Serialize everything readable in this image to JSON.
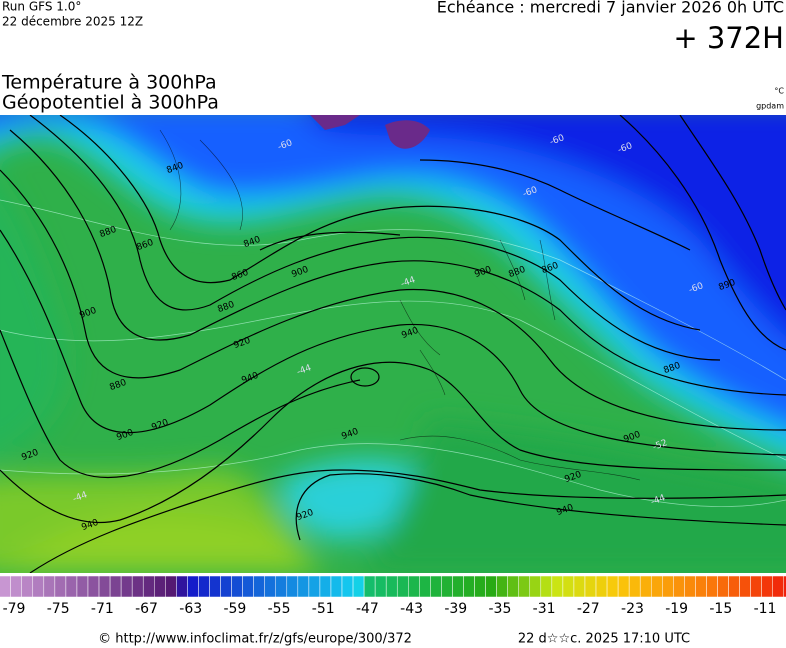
{
  "header": {
    "run": "Run GFS 1.0°",
    "date": "22 décembre 2025 12Z",
    "echeance": "Echéance : mercredi 7 janvier 2026 0h UTC",
    "lead": "+ 372H"
  },
  "title": {
    "line1": "Température à 300hPa",
    "line2": "Géopotentiel à 300hPa"
  },
  "units": {
    "temperature": "°C",
    "geopotential": "gpdam"
  },
  "map": {
    "contour_labels": [
      "840",
      "860",
      "880",
      "900",
      "880",
      "900",
      "920",
      "920",
      "940",
      "840",
      "860",
      "880",
      "900",
      "920",
      "940",
      "940",
      "940",
      "920",
      "900",
      "880",
      "860",
      "880",
      "900",
      "920",
      "940",
      "890",
      "-60",
      "-60",
      "-60",
      "-60",
      "-60",
      "-44",
      "-44",
      "-44",
      "-44",
      "-52"
    ]
  },
  "colorbar": {
    "ticks": [
      -79,
      -75,
      -71,
      -67,
      -63,
      -59,
      -55,
      -51,
      -47,
      -43,
      -39,
      -35,
      -31,
      -27,
      -23,
      -19,
      -15,
      -11
    ]
  },
  "footer": {
    "url": "© http://www.infoclimat.fr/z/gfs/europe/300/372",
    "timestamp": "22 d☆☆c. 2025 17:10 UTC"
  }
}
